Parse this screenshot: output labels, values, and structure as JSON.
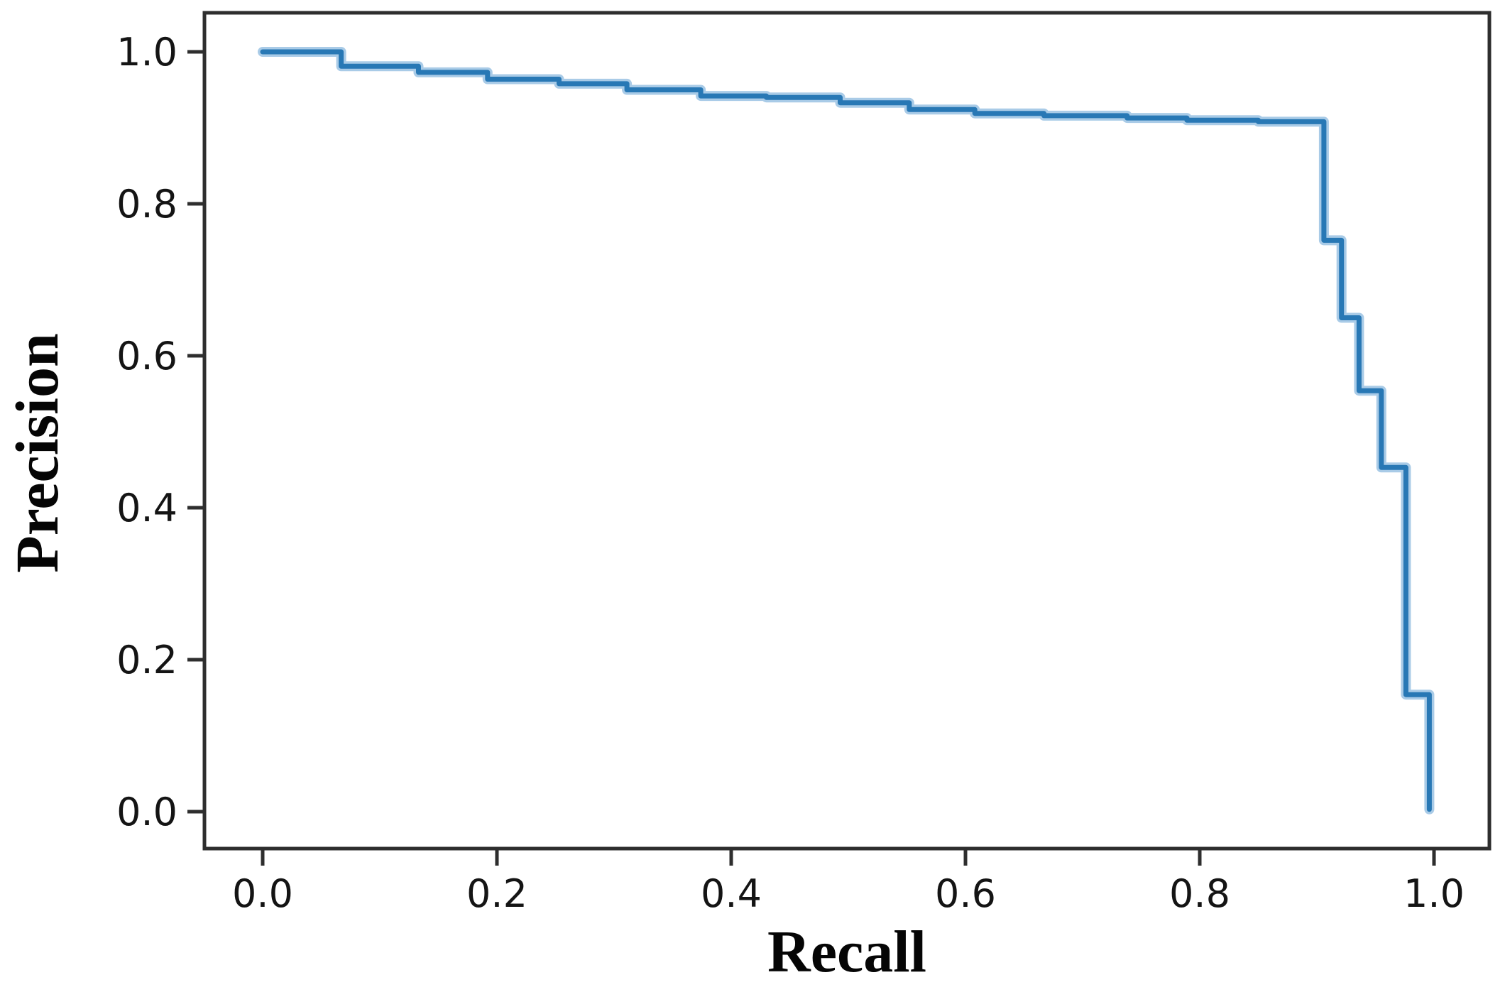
{
  "chart_data": {
    "type": "line",
    "title": "",
    "xlabel": "Recall",
    "ylabel": "Precision",
    "xlim": [
      -0.05,
      1.048
    ],
    "ylim": [
      -0.049,
      1.051
    ],
    "x_ticks": [
      0.0,
      0.2,
      0.4,
      0.6,
      0.8,
      1.0
    ],
    "x_tick_labels": [
      "0.0",
      "0.2",
      "0.4",
      "0.6",
      "0.8",
      "1.0"
    ],
    "y_ticks": [
      0.0,
      0.2,
      0.4,
      0.6,
      0.8,
      1.0
    ],
    "y_tick_labels": [
      "0.0",
      "0.2",
      "0.4",
      "0.6",
      "0.8",
      "1.0"
    ],
    "grid": false,
    "legend": null,
    "series": [
      {
        "name": "precision-recall-curve",
        "line_color": "#2878b5",
        "halo_color": "#a9cbe7",
        "points": [
          [
            0.0,
            1.0
          ],
          [
            0.067,
            1.0
          ],
          [
            0.067,
            0.981
          ],
          [
            0.133,
            0.981
          ],
          [
            0.133,
            0.973
          ],
          [
            0.192,
            0.973
          ],
          [
            0.192,
            0.964
          ],
          [
            0.253,
            0.964
          ],
          [
            0.253,
            0.958
          ],
          [
            0.311,
            0.958
          ],
          [
            0.311,
            0.95
          ],
          [
            0.374,
            0.95
          ],
          [
            0.374,
            0.942
          ],
          [
            0.43,
            0.942
          ],
          [
            0.43,
            0.94
          ],
          [
            0.493,
            0.94
          ],
          [
            0.493,
            0.933
          ],
          [
            0.552,
            0.933
          ],
          [
            0.552,
            0.924
          ],
          [
            0.608,
            0.924
          ],
          [
            0.608,
            0.919
          ],
          [
            0.667,
            0.919
          ],
          [
            0.667,
            0.916
          ],
          [
            0.738,
            0.916
          ],
          [
            0.738,
            0.913
          ],
          [
            0.789,
            0.913
          ],
          [
            0.789,
            0.91
          ],
          [
            0.85,
            0.91
          ],
          [
            0.85,
            0.908
          ],
          [
            0.906,
            0.908
          ],
          [
            0.906,
            0.752
          ],
          [
            0.921,
            0.752
          ],
          [
            0.921,
            0.65
          ],
          [
            0.936,
            0.65
          ],
          [
            0.936,
            0.554
          ],
          [
            0.955,
            0.554
          ],
          [
            0.955,
            0.453
          ],
          [
            0.976,
            0.453
          ],
          [
            0.976,
            0.154
          ],
          [
            0.996,
            0.154
          ],
          [
            0.996,
            0.003
          ]
        ]
      }
    ],
    "axis_color": "#2e2e2e"
  }
}
